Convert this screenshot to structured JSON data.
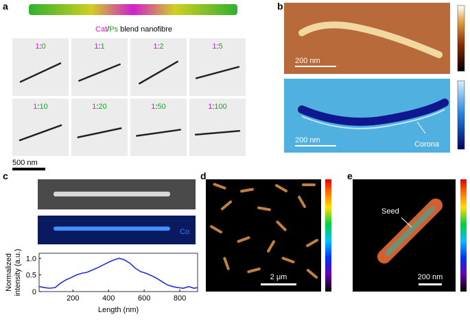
{
  "panel_a": {
    "label": "a",
    "caption": {
      "cat": "Cat",
      "sep": "/",
      "ps": "Ps",
      "rest": " blend nanofibre"
    },
    "images": [
      {
        "cat": "1",
        "sep": ":",
        "ps": "0"
      },
      {
        "cat": "1",
        "sep": ":",
        "ps": "1"
      },
      {
        "cat": "1",
        "sep": ":",
        "ps": "2"
      },
      {
        "cat": "1",
        "sep": ":",
        "ps": "5"
      },
      {
        "cat": "1",
        "sep": ":",
        "ps": "10"
      },
      {
        "cat": "1",
        "sep": ":",
        "ps": "20"
      },
      {
        "cat": "1",
        "sep": ":",
        "ps": "50"
      },
      {
        "cat": "1",
        "sep": ":",
        "ps": "100"
      }
    ],
    "scale_bar": "500 nm"
  },
  "panel_b": {
    "label": "b",
    "top_scale_bar": "200 nm",
    "bottom_scale_bar": "200 nm",
    "annotation": "Corona"
  },
  "panel_c": {
    "label": "c",
    "element_label": "Co",
    "chart_data": {
      "type": "line",
      "y_label_line1": "Normalized",
      "y_label_line2": "intensity (a.u.)",
      "x_label": "Length (nm)",
      "x": [
        10,
        40,
        70,
        100,
        130,
        160,
        190,
        220,
        250,
        280,
        310,
        340,
        370,
        400,
        430,
        460,
        490,
        520,
        550,
        580,
        610,
        640,
        670,
        700,
        730,
        760,
        790,
        820,
        850,
        880,
        900
      ],
      "series": [
        {
          "color": "#1f2fd0",
          "values": [
            0.15,
            0.12,
            0.1,
            0.12,
            0.25,
            0.35,
            0.42,
            0.5,
            0.55,
            0.58,
            0.65,
            0.72,
            0.8,
            0.88,
            0.95,
            1.0,
            0.95,
            0.85,
            0.7,
            0.6,
            0.55,
            0.48,
            0.4,
            0.3,
            0.2,
            0.15,
            0.12,
            0.1,
            0.15,
            0.1,
            0.12
          ]
        }
      ],
      "xlim": [
        10,
        900
      ],
      "xticks": [
        200,
        400,
        600,
        800
      ],
      "ylim": [
        0,
        1.15
      ],
      "yticks": [
        0,
        0.5,
        {
          "value": 1,
          "label": "1.0"
        }
      ]
    }
  },
  "panel_d": {
    "label": "d",
    "scale_bar": "2 μm"
  },
  "panel_e": {
    "label": "e",
    "annotation": "Seed",
    "scale_bar": "200 nm"
  }
}
